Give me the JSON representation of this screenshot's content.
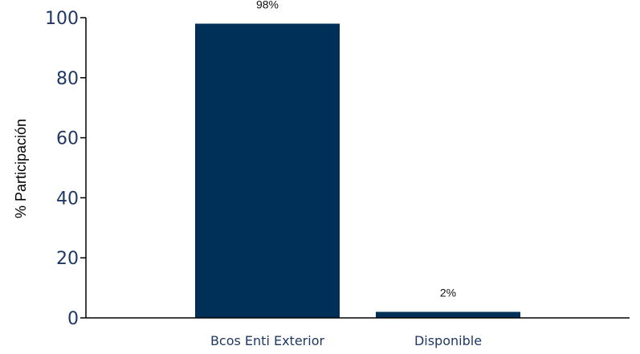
{
  "chart_data": {
    "type": "bar",
    "categories": [
      "Bcos Enti Exterior",
      "Disponible"
    ],
    "values": [
      98,
      2
    ],
    "data_labels": [
      "98%",
      "2%"
    ],
    "title": "",
    "xlabel": "",
    "ylabel": "% Participación",
    "ylim": [
      0,
      100
    ],
    "yticks": [
      0,
      20,
      40,
      60,
      80,
      100
    ],
    "grid": false,
    "legend": "none",
    "colors": {
      "bar": "#003057",
      "axis": "#000000",
      "tick_text": "#1f3864"
    }
  }
}
